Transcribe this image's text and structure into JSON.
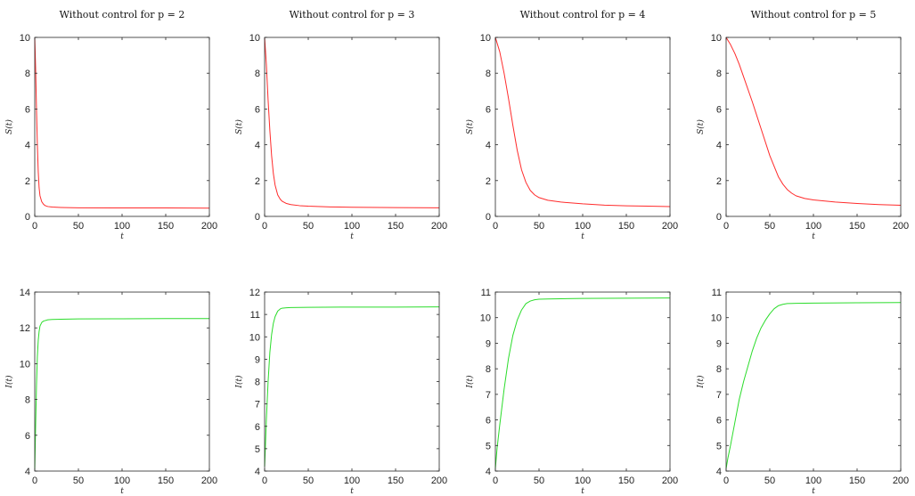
{
  "figure": {
    "columns": 4,
    "rows": 2
  },
  "chart_data": [
    {
      "type": "line",
      "title": "Without control for p = 2",
      "xlabel": "t",
      "ylabel": "S(t)",
      "xlim": [
        0,
        200
      ],
      "ylim": [
        0,
        10
      ],
      "xticks": [
        0,
        50,
        100,
        150,
        200
      ],
      "yticks": [
        0,
        2,
        4,
        6,
        8,
        10
      ],
      "grid": false,
      "series": [
        {
          "color": "#ff2b2b",
          "x": [
            0,
            1,
            2,
            3,
            4,
            5,
            6,
            8,
            10,
            12,
            15,
            20,
            30,
            50,
            100,
            150,
            200
          ],
          "y": [
            10,
            8.3,
            6.0,
            4.0,
            2.5,
            1.6,
            1.15,
            0.82,
            0.68,
            0.6,
            0.55,
            0.52,
            0.5,
            0.48,
            0.47,
            0.47,
            0.46
          ]
        }
      ]
    },
    {
      "type": "line",
      "title": "Without control for p = 3",
      "xlabel": "t",
      "ylabel": "S(t)",
      "xlim": [
        0,
        200
      ],
      "ylim": [
        0,
        10
      ],
      "xticks": [
        0,
        50,
        100,
        150,
        200
      ],
      "yticks": [
        0,
        2,
        4,
        6,
        8,
        10
      ],
      "grid": false,
      "series": [
        {
          "color": "#ff2b2b",
          "x": [
            0,
            2,
            4,
            6,
            8,
            10,
            12,
            15,
            18,
            20,
            25,
            30,
            40,
            50,
            75,
            100,
            150,
            200
          ],
          "y": [
            10,
            8.5,
            6.5,
            4.8,
            3.4,
            2.4,
            1.75,
            1.2,
            0.95,
            0.85,
            0.72,
            0.66,
            0.6,
            0.57,
            0.53,
            0.51,
            0.49,
            0.48
          ]
        }
      ]
    },
    {
      "type": "line",
      "title": "Without control for p = 4",
      "xlabel": "t",
      "ylabel": "S(t)",
      "xlim": [
        0,
        200
      ],
      "ylim": [
        0,
        10
      ],
      "xticks": [
        0,
        50,
        100,
        150,
        200
      ],
      "yticks": [
        0,
        2,
        4,
        6,
        8,
        10
      ],
      "grid": false,
      "series": [
        {
          "color": "#ff2b2b",
          "x": [
            0,
            5,
            10,
            15,
            20,
            25,
            30,
            35,
            40,
            45,
            50,
            60,
            75,
            100,
            125,
            150,
            175,
            200
          ],
          "y": [
            10,
            9.2,
            8.0,
            6.6,
            5.1,
            3.7,
            2.6,
            1.9,
            1.45,
            1.2,
            1.05,
            0.9,
            0.8,
            0.7,
            0.63,
            0.59,
            0.57,
            0.55
          ]
        }
      ]
    },
    {
      "type": "line",
      "title": "Without control for p = 5",
      "xlabel": "t",
      "ylabel": "S(t)",
      "xlim": [
        0,
        200
      ],
      "ylim": [
        0,
        10
      ],
      "xticks": [
        0,
        50,
        100,
        150,
        200
      ],
      "yticks": [
        0,
        2,
        4,
        6,
        8,
        10
      ],
      "grid": false,
      "series": [
        {
          "color": "#ff2b2b",
          "x": [
            0,
            5,
            10,
            15,
            20,
            30,
            40,
            50,
            60,
            65,
            70,
            75,
            80,
            90,
            100,
            125,
            150,
            175,
            200
          ],
          "y": [
            10,
            9.6,
            9.1,
            8.5,
            7.8,
            6.4,
            4.9,
            3.4,
            2.2,
            1.8,
            1.5,
            1.3,
            1.15,
            1.0,
            0.92,
            0.8,
            0.72,
            0.66,
            0.62
          ]
        }
      ]
    },
    {
      "type": "line",
      "title": "",
      "xlabel": "t",
      "ylabel": "I(t)",
      "xlim": [
        0,
        200
      ],
      "ylim": [
        4,
        14
      ],
      "xticks": [
        0,
        50,
        100,
        150,
        200
      ],
      "yticks": [
        4,
        6,
        8,
        10,
        12,
        14
      ],
      "grid": false,
      "series": [
        {
          "color": "#2bdc2b",
          "x": [
            0,
            1,
            2,
            3,
            4,
            5,
            6,
            8,
            10,
            15,
            20,
            30,
            50,
            100,
            150,
            200
          ],
          "y": [
            4.1,
            6.5,
            8.8,
            10.4,
            11.3,
            11.8,
            12.1,
            12.3,
            12.38,
            12.45,
            12.47,
            12.48,
            12.5,
            12.51,
            12.52,
            12.52
          ]
        }
      ]
    },
    {
      "type": "line",
      "title": "",
      "xlabel": "t",
      "ylabel": "I(t)",
      "xlim": [
        0,
        200
      ],
      "ylim": [
        4,
        12
      ],
      "xticks": [
        0,
        50,
        100,
        150,
        200
      ],
      "yticks": [
        4,
        5,
        6,
        7,
        8,
        9,
        10,
        11,
        12
      ],
      "grid": false,
      "series": [
        {
          "color": "#2bdc2b",
          "x": [
            0,
            1,
            2,
            4,
            6,
            8,
            10,
            12,
            15,
            18,
            20,
            25,
            30,
            50,
            100,
            150,
            200
          ],
          "y": [
            4.2,
            5.2,
            6.3,
            8.0,
            9.3,
            10.1,
            10.6,
            10.9,
            11.15,
            11.25,
            11.28,
            11.3,
            11.31,
            11.32,
            11.33,
            11.33,
            11.34
          ]
        }
      ]
    },
    {
      "type": "line",
      "title": "",
      "xlabel": "t",
      "ylabel": "I(t)",
      "xlim": [
        0,
        200
      ],
      "ylim": [
        4,
        11
      ],
      "xticks": [
        0,
        50,
        100,
        150,
        200
      ],
      "yticks": [
        4,
        5,
        6,
        7,
        8,
        9,
        10,
        11
      ],
      "grid": false,
      "series": [
        {
          "color": "#2bdc2b",
          "x": [
            0,
            2,
            5,
            10,
            15,
            20,
            25,
            30,
            35,
            40,
            45,
            50,
            60,
            75,
            100,
            150,
            200
          ],
          "y": [
            4.1,
            4.9,
            5.8,
            7.2,
            8.4,
            9.3,
            9.9,
            10.3,
            10.55,
            10.65,
            10.7,
            10.72,
            10.73,
            10.74,
            10.75,
            10.76,
            10.77
          ]
        }
      ]
    },
    {
      "type": "line",
      "title": "",
      "xlabel": "t",
      "ylabel": "I(t)",
      "xlim": [
        0,
        200
      ],
      "ylim": [
        4,
        11
      ],
      "xticks": [
        0,
        50,
        100,
        150,
        200
      ],
      "yticks": [
        4,
        5,
        6,
        7,
        8,
        9,
        10,
        11
      ],
      "grid": false,
      "series": [
        {
          "color": "#2bdc2b",
          "x": [
            0,
            2,
            5,
            10,
            15,
            20,
            25,
            30,
            35,
            40,
            45,
            50,
            55,
            60,
            65,
            70,
            80,
            100,
            150,
            200
          ],
          "y": [
            4.1,
            4.5,
            5.0,
            5.9,
            6.8,
            7.5,
            8.1,
            8.7,
            9.2,
            9.6,
            9.9,
            10.15,
            10.35,
            10.47,
            10.52,
            10.55,
            10.56,
            10.57,
            10.58,
            10.59
          ]
        }
      ]
    }
  ]
}
